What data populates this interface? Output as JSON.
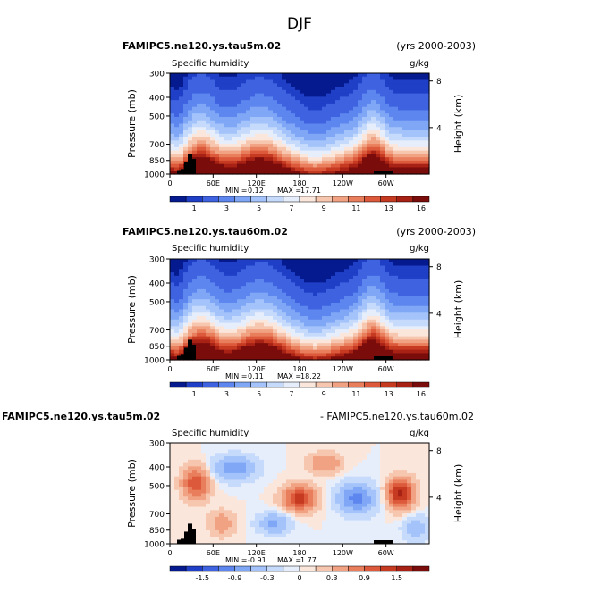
{
  "figure_title": "DJF",
  "chart_data": [
    {
      "type": "contour",
      "case_left": "FAMIPC5.ne120.ys.tau5m.02",
      "case_right": "(yrs 2000-2003)",
      "variable": "Specific humidity",
      "units": "g/kg",
      "ylabel_left": "Pressure (mb)",
      "ylabel_right": "Height (km)",
      "y_ticks": [
        "300",
        "400",
        "500",
        "700",
        "850",
        "1000"
      ],
      "y2_ticks": [
        "8",
        "4"
      ],
      "x_ticks": [
        "0",
        "60E",
        "120E",
        "180",
        "120W",
        "60W"
      ],
      "stats_min_label": "MIN =",
      "stats_min": "0.12",
      "stats_max_label": "MAX =",
      "stats_max": "17.71",
      "colorbar_labels": [
        "1",
        "3",
        "5",
        "7",
        "9",
        "11",
        "13",
        "16"
      ],
      "colorbar_colors": [
        "#061a8f",
        "#1f3fc7",
        "#3e62e0",
        "#5d86ef",
        "#7fa7f6",
        "#a3c3fa",
        "#c6dafc",
        "#e7eefb",
        "#fbe6dc",
        "#f7c6af",
        "#f1a283",
        "#e97e5d",
        "#dc5a3b",
        "#c63a22",
        "#a72114",
        "#7a0d0b"
      ],
      "levels": [
        0.5,
        1,
        2,
        3,
        4,
        5,
        6,
        7,
        8,
        9,
        10,
        11,
        12,
        13,
        14,
        16
      ],
      "vmin": 0,
      "vmax": 17
    },
    {
      "type": "contour",
      "case_left": "FAMIPC5.ne120.ys.tau60m.02",
      "case_right": "(yrs 2000-2003)",
      "variable": "Specific humidity",
      "units": "g/kg",
      "ylabel_left": "Pressure (mb)",
      "ylabel_right": "Height (km)",
      "y_ticks": [
        "300",
        "400",
        "500",
        "700",
        "850",
        "1000"
      ],
      "y2_ticks": [
        "8",
        "4"
      ],
      "x_ticks": [
        "0",
        "60E",
        "120E",
        "180",
        "120W",
        "60W"
      ],
      "stats_min_label": "MIN =",
      "stats_min": "0.11",
      "stats_max_label": "MAX =",
      "stats_max": "18.22",
      "colorbar_labels": [
        "1",
        "3",
        "5",
        "7",
        "9",
        "11",
        "13",
        "16"
      ],
      "colorbar_colors": [
        "#061a8f",
        "#1f3fc7",
        "#3e62e0",
        "#5d86ef",
        "#7fa7f6",
        "#a3c3fa",
        "#c6dafc",
        "#e7eefb",
        "#fbe6dc",
        "#f7c6af",
        "#f1a283",
        "#e97e5d",
        "#dc5a3b",
        "#c63a22",
        "#a72114",
        "#7a0d0b"
      ],
      "levels": [
        0.5,
        1,
        2,
        3,
        4,
        5,
        6,
        7,
        8,
        9,
        10,
        11,
        12,
        13,
        14,
        16
      ],
      "vmin": 0,
      "vmax": 17
    },
    {
      "type": "contour",
      "case_left": "FAMIPC5.ne120.ys.tau5m.02",
      "case_right": "- FAMIPC5.ne120.ys.tau60m.02",
      "variable": "Specific humidity",
      "units": "g/kg",
      "ylabel_left": "Pressure (mb)",
      "ylabel_right": "Height (km)",
      "y_ticks": [
        "300",
        "400",
        "500",
        "700",
        "850",
        "1000"
      ],
      "y2_ticks": [
        "8",
        "4"
      ],
      "x_ticks": [
        "0",
        "60E",
        "120E",
        "180",
        "120W",
        "60W"
      ],
      "stats_min_label": "MIN =",
      "stats_min": "-0.91",
      "stats_max_label": "MAX =",
      "stats_max": "1.77",
      "colorbar_labels": [
        "-1.5",
        "-0.9",
        "-0.3",
        "0",
        "0.3",
        "0.9",
        "1.5"
      ],
      "colorbar_colors": [
        "#061a8f",
        "#1f3fc7",
        "#3e62e0",
        "#5d86ef",
        "#7fa7f6",
        "#a3c3fa",
        "#c6dafc",
        "#e7eefb",
        "#fbe6dc",
        "#f7c6af",
        "#f1a283",
        "#e97e5d",
        "#dc5a3b",
        "#c63a22",
        "#a72114",
        "#7a0d0b"
      ],
      "levels": [
        -1.8,
        -1.5,
        -1.2,
        -0.9,
        -0.6,
        -0.3,
        -0.1,
        0,
        0.1,
        0.3,
        0.6,
        0.9,
        1.2,
        1.5,
        1.8
      ],
      "vmin": -1.8,
      "vmax": 1.8
    }
  ]
}
